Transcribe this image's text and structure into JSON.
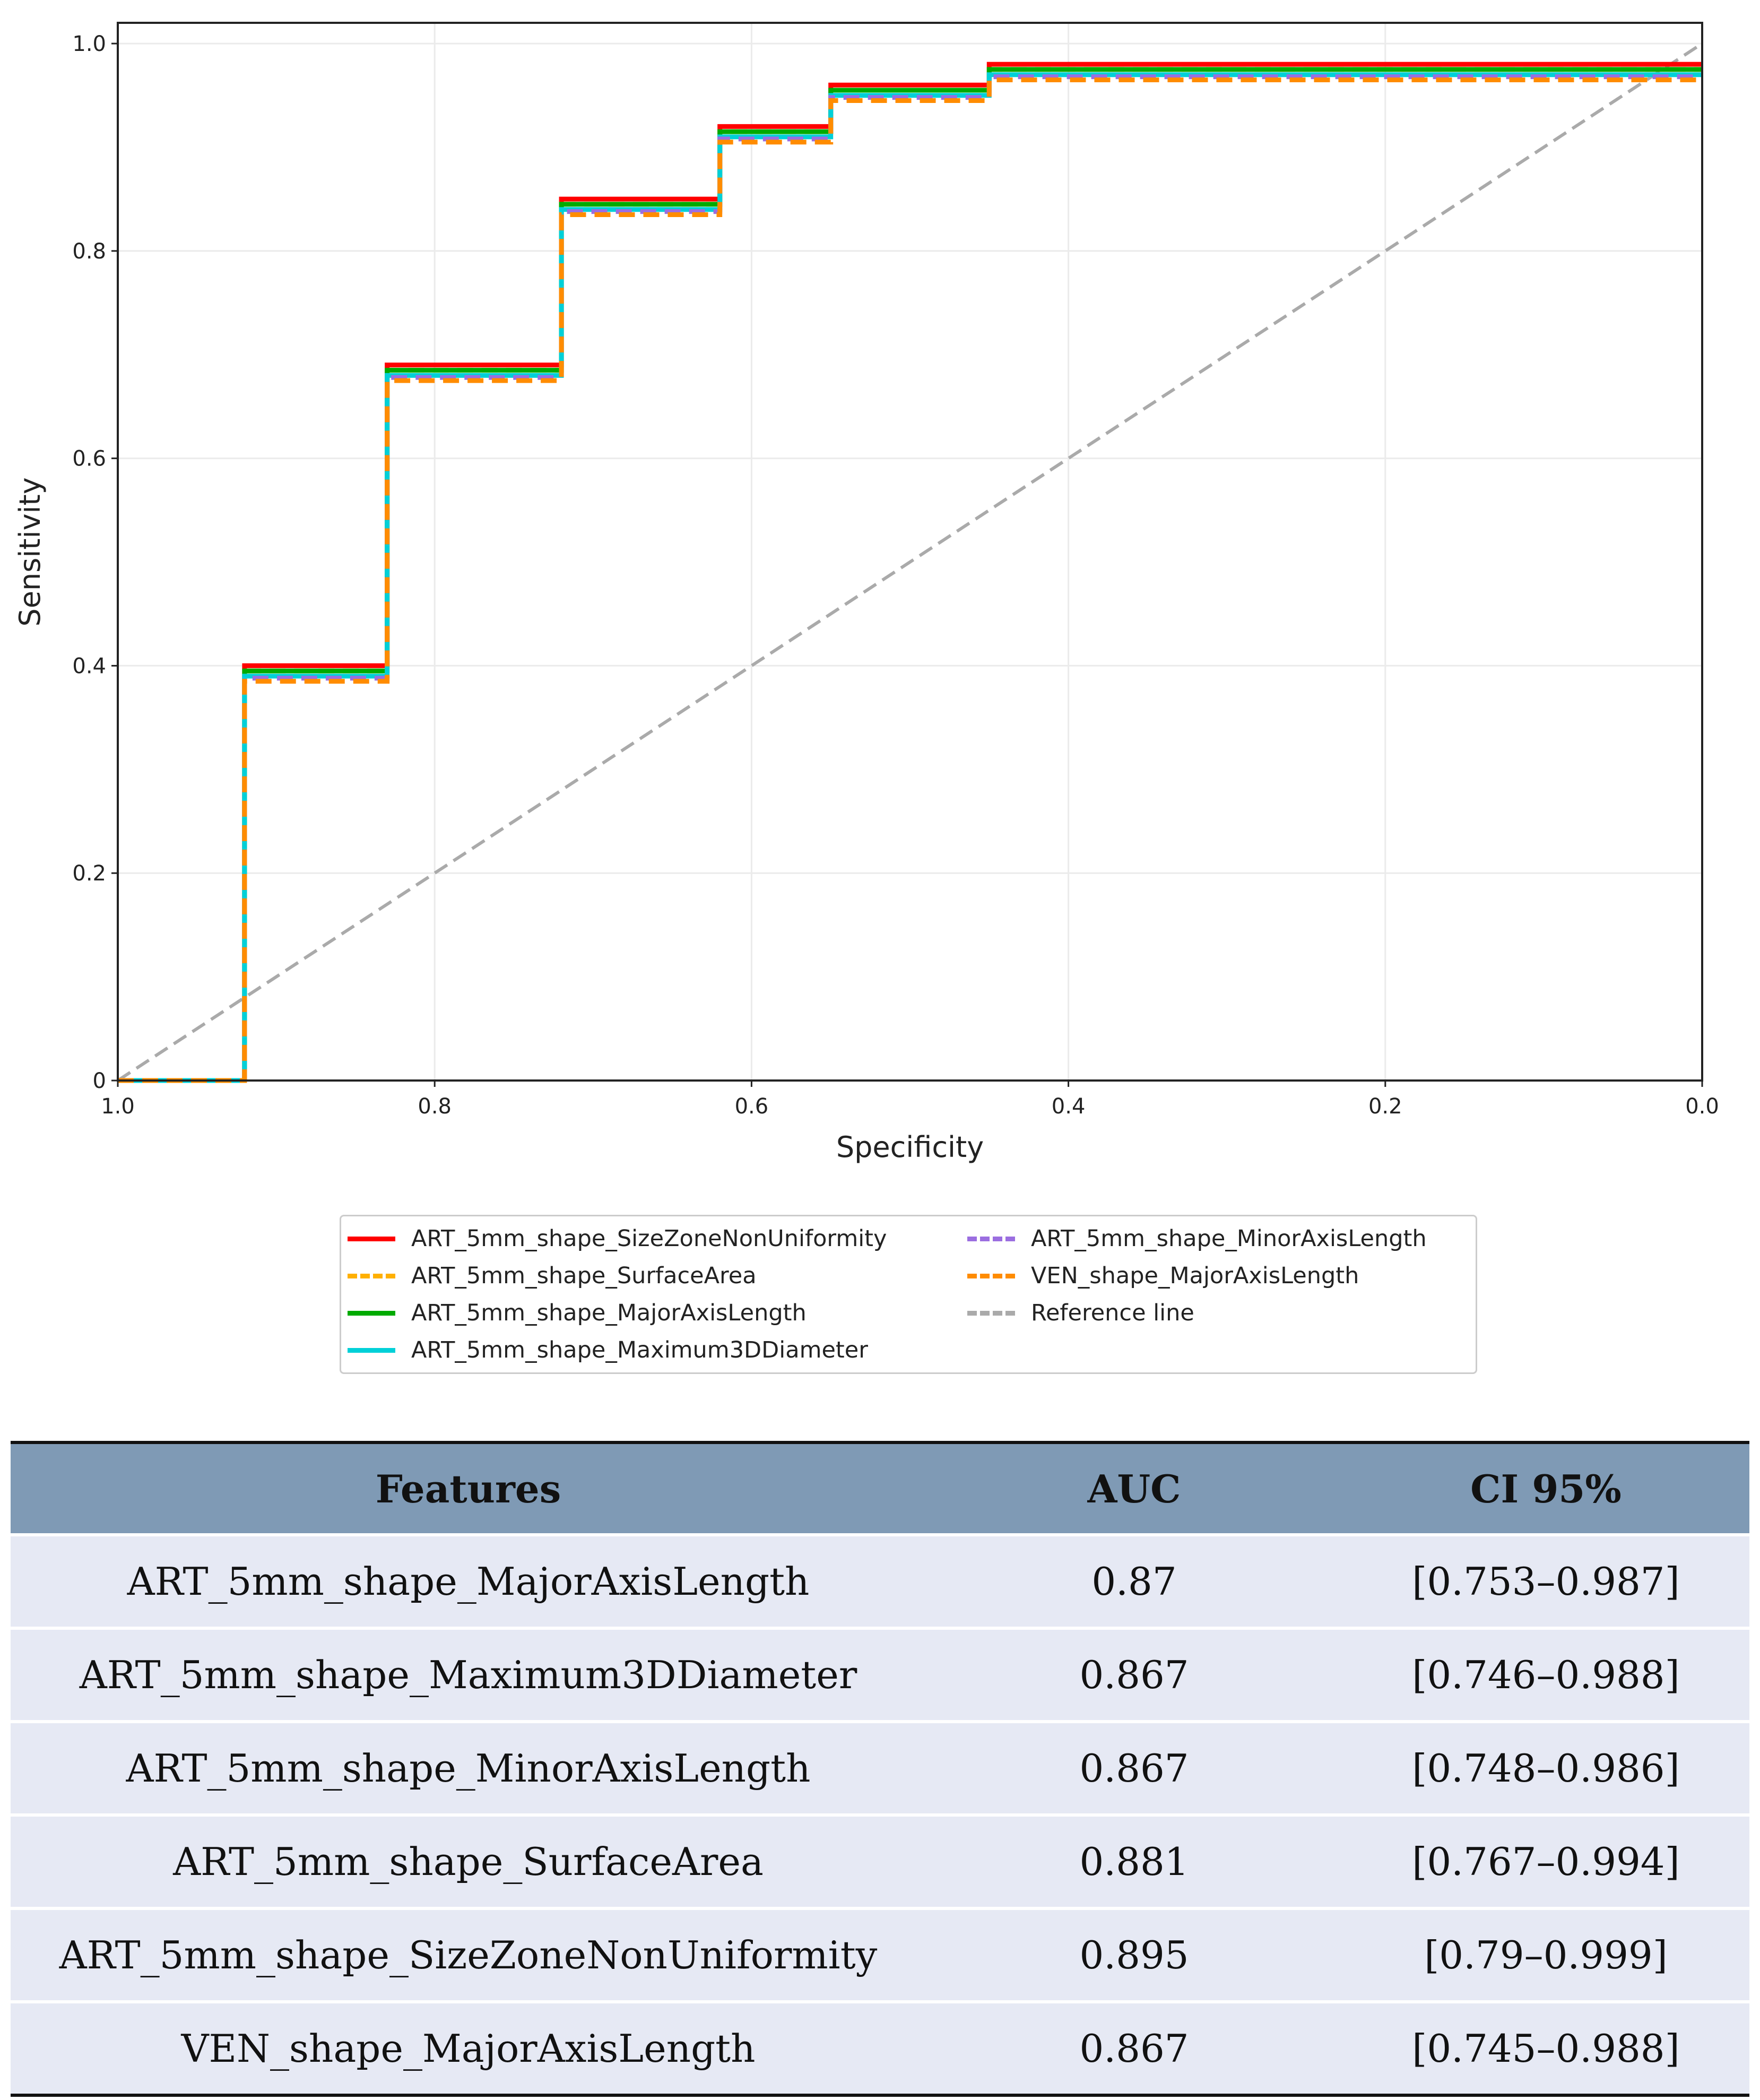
{
  "chart_data": {
    "type": "line",
    "title": "",
    "xlabel": "Specificity",
    "ylabel": "Sensitivity",
    "xlim": [
      1.0,
      0.0
    ],
    "ylim": [
      0,
      1.02
    ],
    "x_ticks": [
      "1.0",
      "0.8",
      "0.6",
      "0.4",
      "0.2",
      "0.0"
    ],
    "x_tick_values": [
      1.0,
      0.8,
      0.6,
      0.4,
      0.2,
      0.0
    ],
    "y_ticks": [
      "0",
      "0.2",
      "0.4",
      "0.6",
      "0.8",
      "1.0"
    ],
    "y_tick_values": [
      0,
      0.2,
      0.4,
      0.6,
      0.8,
      1.0
    ],
    "grid": true,
    "legend_position": "below",
    "step_specificity": [
      1.0,
      0.92,
      0.83,
      0.72,
      0.62,
      0.55,
      0.45,
      0.0
    ],
    "series": [
      {
        "name": "ART_5mm_shape_SizeZoneNonUniformity",
        "color": "#ff0000",
        "dash": "solid",
        "sensitivity": [
          0,
          0.4,
          0.69,
          0.85,
          0.92,
          0.96,
          0.98,
          0.98
        ]
      },
      {
        "name": "ART_5mm_shape_SurfaceArea",
        "color": "#ffb000",
        "dash": "dashed",
        "sensitivity": [
          0,
          0.395,
          0.685,
          0.845,
          0.915,
          0.955,
          0.975,
          0.975
        ]
      },
      {
        "name": "ART_5mm_shape_MajorAxisLength",
        "color": "#00aa00",
        "dash": "solid",
        "sensitivity": [
          0,
          0.395,
          0.685,
          0.845,
          0.915,
          0.955,
          0.975,
          0.975
        ]
      },
      {
        "name": "ART_5mm_shape_Maximum3DDiameter",
        "color": "#00d0d8",
        "dash": "solid",
        "sensitivity": [
          0,
          0.39,
          0.68,
          0.84,
          0.91,
          0.95,
          0.97,
          0.97
        ]
      },
      {
        "name": "ART_5mm_shape_MinorAxisLength",
        "color": "#9b6ee0",
        "dash": "dashed",
        "sensitivity": [
          0,
          0.388,
          0.678,
          0.838,
          0.908,
          0.948,
          0.968,
          0.968
        ]
      },
      {
        "name": "VEN_shape_MajorAxisLength",
        "color": "#ff8c00",
        "dash": "dashed",
        "sensitivity": [
          0,
          0.385,
          0.675,
          0.835,
          0.905,
          0.945,
          0.965,
          0.965
        ]
      }
    ],
    "reference": {
      "name": "Reference line",
      "color": "#aaaaaa",
      "dash": "dashed",
      "x": [
        1.0,
        0.0
      ],
      "y": [
        0,
        1.0
      ]
    }
  },
  "legend_order": [
    0,
    1,
    2,
    3,
    4,
    5
  ],
  "table": {
    "headers": [
      "Features",
      "AUC",
      "CI 95%"
    ],
    "rows": [
      [
        "ART_5mm_shape_MajorAxisLength",
        "0.87",
        "[0.753–0.987]"
      ],
      [
        "ART_5mm_shape_Maximum3DDiameter",
        "0.867",
        "[0.746–0.988]"
      ],
      [
        "ART_5mm_shape_MinorAxisLength",
        "0.867",
        "[0.748–0.986]"
      ],
      [
        "ART_5mm_shape_SurfaceArea",
        "0.881",
        "[0.767–0.994]"
      ],
      [
        "ART_5mm_shape_SizeZoneNonUniformity",
        "0.895",
        "[0.79–0.999]"
      ],
      [
        "VEN_shape_MajorAxisLength",
        "0.867",
        "[0.745–0.988]"
      ]
    ]
  }
}
